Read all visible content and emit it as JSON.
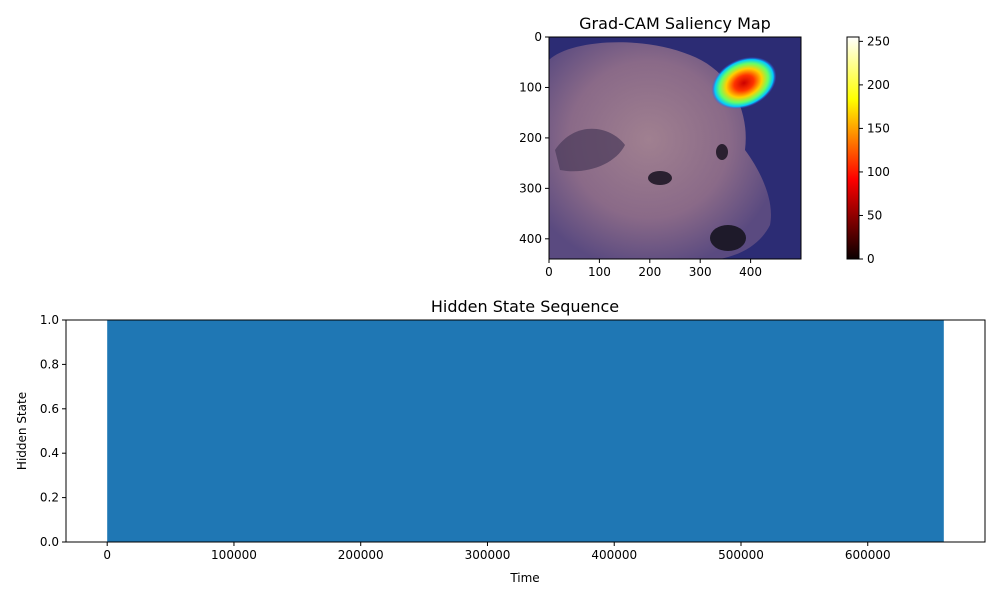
{
  "figure_colors": {
    "bar": "#1f77b4",
    "axes": "#000000",
    "background": "#ffffff"
  },
  "chart_data": [
    {
      "type": "heatmap",
      "title": "Grad-CAM Saliency Map",
      "description_colormap": "jet overlay on photo",
      "image_extent": {
        "x": [
          0,
          500
        ],
        "y": [
          440,
          0
        ]
      },
      "x_ticks": [
        0,
        100,
        200,
        300,
        400
      ],
      "y_ticks": [
        0,
        100,
        200,
        300,
        400
      ],
      "hotspot": {
        "x": 390,
        "y": 90
      },
      "colorbar": {
        "colormap": "hot",
        "range": [
          0,
          255
        ],
        "ticks": [
          0,
          50,
          100,
          150,
          200,
          250
        ]
      }
    },
    {
      "type": "bar",
      "title": "Hidden State Sequence",
      "xlabel": "Time",
      "ylabel": "Hidden State",
      "xlim": [
        -32500,
        692500
      ],
      "ylim": [
        0,
        1
      ],
      "x_ticks": [
        0,
        100000,
        200000,
        300000,
        400000,
        500000,
        600000
      ],
      "y_ticks": [
        0.0,
        0.2,
        0.4,
        0.6,
        0.8,
        1.0
      ],
      "y_tick_labels": [
        "0.0",
        "0.2",
        "0.4",
        "0.6",
        "0.8",
        "1.0"
      ],
      "bars": [
        {
          "x_start": 0,
          "x_end": 660000,
          "value": 1.0
        }
      ],
      "color": "#1f77b4"
    }
  ]
}
